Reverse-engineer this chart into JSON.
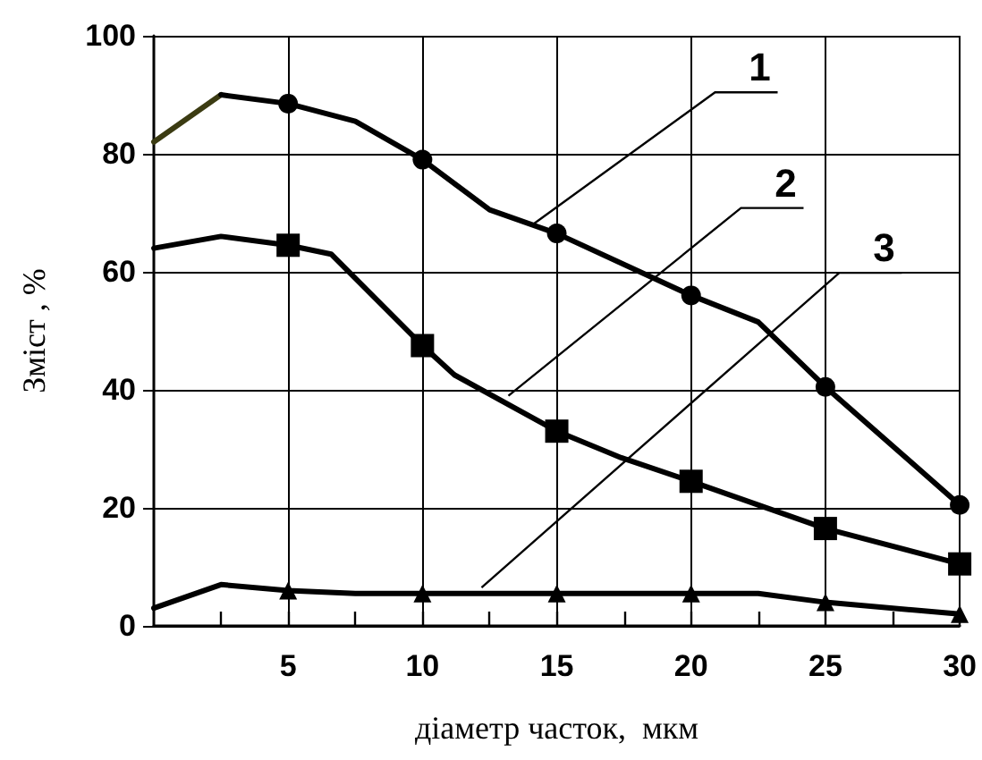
{
  "chart_data": {
    "type": "line",
    "xlabel": "діаметр часток,  мкм",
    "ylabel": "Зміст , %",
    "xlim": [
      0,
      30
    ],
    "ylim": [
      0,
      100
    ],
    "xticks": [
      {
        "value": 2.5,
        "label": null
      },
      5,
      {
        "value": 7.5,
        "label": null
      },
      10,
      {
        "value": 12.5,
        "label": null
      },
      15,
      {
        "value": 17.5,
        "label": null
      },
      20,
      {
        "value": 22.5,
        "label": null
      },
      25,
      {
        "value": 27.5,
        "label": null
      },
      30
    ],
    "yticks": [
      0,
      20,
      40,
      60,
      80,
      100
    ],
    "grid": true,
    "line_style": "solid",
    "series": [
      {
        "color": "#3b3b12",
        "marker": "none",
        "x": [
          0,
          2.5
        ],
        "values": [
          82,
          90
        ]
      },
      {
        "color": "#000000",
        "marker": "circle",
        "x": [
          2.5,
          5,
          7.5,
          10,
          12.5,
          15,
          20,
          22.5,
          25,
          30
        ],
        "values": [
          90,
          88.5,
          85.5,
          79,
          70.5,
          66.5,
          56,
          51.5,
          40.5,
          20.5
        ]
      },
      {
        "color": "#000000",
        "marker": "square",
        "x": [
          0,
          2.5,
          5,
          6.6,
          10,
          11.2,
          15,
          17.4,
          20,
          25,
          30
        ],
        "values": [
          64,
          66,
          64.5,
          63,
          47.5,
          42.5,
          33,
          28.5,
          24.5,
          16.5,
          10.5
        ]
      },
      {
        "color": "#000000",
        "marker": "triangle",
        "x": [
          0,
          2.5,
          5,
          7.5,
          10,
          15,
          20,
          22.5,
          25,
          30
        ],
        "values": [
          3,
          7,
          6,
          5.5,
          5.5,
          5.5,
          5.5,
          5.5,
          4,
          2
        ]
      }
    ],
    "annotations": [
      {
        "text": "1",
        "x": 14.1,
        "y": 68
      },
      {
        "text": "2",
        "x": 13.2,
        "y": 39
      },
      {
        "text": "3",
        "x": 12.2,
        "y": 6.5
      }
    ]
  }
}
